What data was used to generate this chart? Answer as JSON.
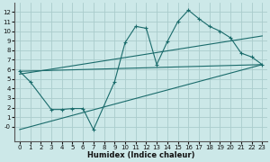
{
  "xlabel": "Humidex (Indice chaleur)",
  "bg_color": "#cce8e8",
  "grid_color": "#aacccc",
  "line_color": "#1a6b6b",
  "line1_x": [
    0,
    1,
    3,
    4,
    5,
    6,
    7,
    9,
    10,
    11,
    12,
    13,
    14,
    15,
    16,
    17,
    18,
    19,
    20,
    21,
    22,
    23
  ],
  "line1_y": [
    5.8,
    4.7,
    1.8,
    1.8,
    1.9,
    1.9,
    -0.3,
    4.7,
    8.8,
    10.5,
    10.3,
    6.5,
    8.9,
    11.0,
    12.2,
    11.3,
    10.5,
    10.0,
    9.3,
    7.7,
    7.3,
    6.5
  ],
  "line2_x": [
    0,
    23
  ],
  "line2_y": [
    5.8,
    6.5
  ],
  "line3_x": [
    0,
    23
  ],
  "line3_y": [
    5.5,
    9.5
  ],
  "line4_x": [
    0,
    23
  ],
  "line4_y": [
    -0.3,
    6.5
  ],
  "xlim": [
    -0.5,
    23.5
  ],
  "ylim": [
    -1.5,
    13
  ],
  "yticks": [
    0,
    1,
    2,
    3,
    4,
    5,
    6,
    7,
    8,
    9,
    10,
    11,
    12
  ],
  "ytick_labels": [
    "-0",
    "1",
    "2",
    "3",
    "4",
    "5",
    "6",
    "7",
    "8",
    "9",
    "10",
    "11",
    "12"
  ],
  "xticks": [
    0,
    1,
    2,
    3,
    4,
    5,
    6,
    7,
    8,
    9,
    10,
    11,
    12,
    13,
    14,
    15,
    16,
    17,
    18,
    19,
    20,
    21,
    22,
    23
  ]
}
